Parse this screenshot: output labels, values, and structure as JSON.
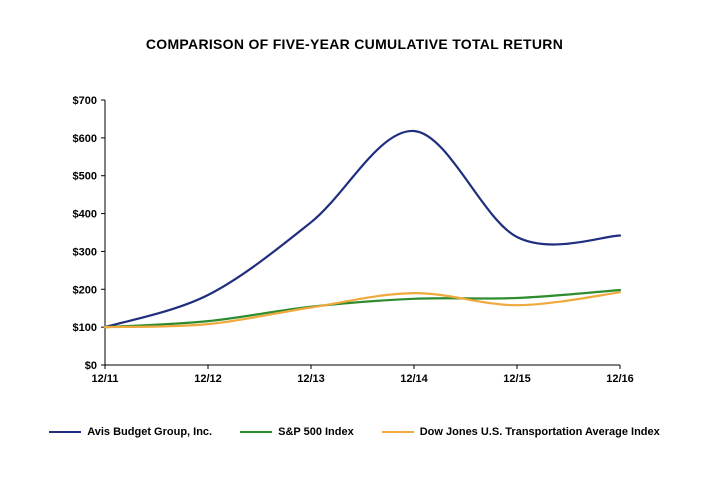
{
  "title": "COMPARISON OF FIVE-YEAR CUMULATIVE TOTAL RETURN",
  "chart_data": {
    "type": "line",
    "x": [
      "12/11",
      "12/12",
      "12/13",
      "12/14",
      "12/15",
      "12/16"
    ],
    "series": [
      {
        "name": "Avis Budget Group, Inc.",
        "color": "#1F2E7E",
        "values": [
          100,
          185,
          377,
          618,
          338,
          342
        ]
      },
      {
        "name": "S&P 500 Index",
        "color": "#2E8B2E",
        "values": [
          100,
          116,
          154,
          175,
          177,
          198
        ]
      },
      {
        "name": "Dow Jones U.S. Transportation Average Index",
        "color": "#EFA93D",
        "values": [
          100,
          108,
          152,
          190,
          158,
          192
        ]
      }
    ],
    "ylim": [
      0,
      700
    ],
    "ytick_step": 100,
    "ytick_labels": [
      "$0",
      "$100",
      "$200",
      "$300",
      "$400",
      "$500",
      "$600",
      "$700"
    ],
    "xlabel": "",
    "ylabel": "",
    "grid": false,
    "legend_position": "bottom"
  }
}
